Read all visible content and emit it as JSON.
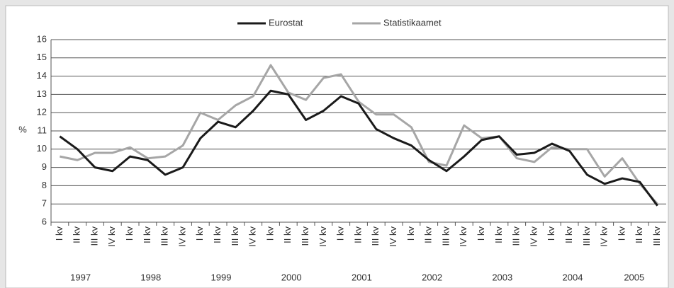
{
  "chart_data": {
    "type": "line",
    "y_label": "%",
    "categories": [
      "I kv",
      "II kv",
      "III kv",
      "IV kv",
      "I kv",
      "II kv",
      "III kv",
      "IV kv",
      "I kv",
      "II kv",
      "III kv",
      "IV kv",
      "I kv",
      "II kv",
      "III kv",
      "IV kv",
      "I kv",
      "II kv",
      "III kv",
      "IV kv",
      "I kv",
      "II kv",
      "III kv",
      "IV kv",
      "I kv",
      "II kv",
      "III kv",
      "IV kv",
      "I kv",
      "II kv",
      "III kv",
      "IV kv",
      "I kv",
      "II kv",
      "III kv"
    ],
    "years": [
      "1997",
      "1998",
      "1999",
      "2000",
      "2001",
      "2002",
      "2003",
      "2004",
      "2005"
    ],
    "series": [
      {
        "name": "Eurostat",
        "color": "#1a1a1a",
        "values": [
          10.7,
          10.0,
          9.0,
          8.8,
          9.6,
          9.4,
          8.6,
          9.0,
          10.6,
          11.5,
          11.2,
          12.1,
          13.2,
          13.0,
          11.6,
          12.1,
          12.9,
          12.5,
          11.1,
          10.6,
          10.2,
          9.4,
          8.8,
          9.6,
          10.5,
          10.7,
          9.7,
          9.8,
          10.3,
          9.9,
          8.6,
          8.1,
          8.4,
          8.2,
          6.9
        ]
      },
      {
        "name": "Statistikaamet",
        "color": "#a6a6a6",
        "values": [
          9.6,
          9.4,
          9.8,
          9.8,
          10.1,
          9.5,
          9.6,
          10.2,
          12.0,
          11.6,
          12.4,
          12.9,
          14.6,
          13.1,
          12.7,
          13.9,
          14.1,
          12.6,
          11.9,
          11.9,
          11.2,
          9.3,
          9.1,
          11.3,
          10.6,
          10.7,
          9.5,
          9.3,
          10.1,
          10.0,
          10.0,
          8.5,
          9.5,
          8.1,
          7.0
        ]
      }
    ],
    "ylim": [
      6,
      16
    ],
    "yticks": [
      6,
      7,
      8,
      9,
      10,
      11,
      12,
      13,
      14,
      15,
      16
    ],
    "grid": true,
    "legend": "top"
  }
}
